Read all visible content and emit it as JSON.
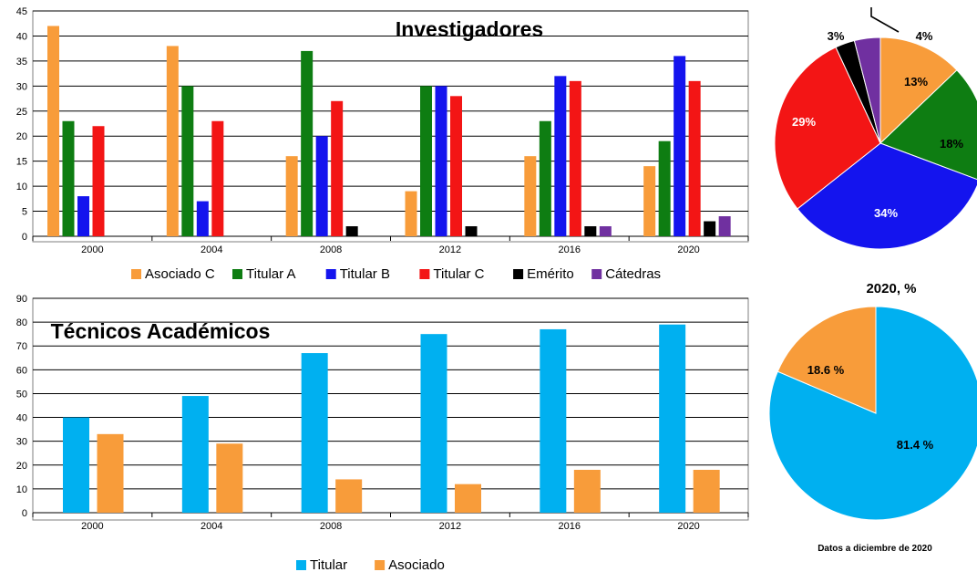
{
  "chart_data": [
    {
      "type": "bar",
      "title": "Investigadores",
      "categories": [
        "2000",
        "2004",
        "2008",
        "2012",
        "2016",
        "2020"
      ],
      "ylim": [
        0,
        45
      ],
      "yticks": [
        0,
        5,
        10,
        15,
        20,
        25,
        30,
        35,
        40,
        45
      ],
      "grid": true,
      "legend": "bottom",
      "series": [
        {
          "name": "Asociado C",
          "color": "#f89c3a",
          "values": [
            42,
            38,
            16,
            9,
            16,
            14
          ]
        },
        {
          "name": "Titular A",
          "color": "#0e7d12",
          "values": [
            23,
            30,
            37,
            30,
            23,
            19
          ]
        },
        {
          "name": "Titular B",
          "color": "#1414ee",
          "values": [
            8,
            7,
            20,
            30,
            32,
            36
          ]
        },
        {
          "name": "Titular C",
          "color": "#f31515",
          "values": [
            22,
            23,
            27,
            28,
            31,
            31
          ]
        },
        {
          "name": "Emérito",
          "color": "#000000",
          "values": [
            0,
            0,
            2,
            2,
            2,
            3
          ]
        },
        {
          "name": "Cátedras",
          "color": "#7030a0",
          "values": [
            0,
            0,
            0,
            0,
            2,
            4
          ]
        }
      ]
    },
    {
      "type": "pie",
      "slices": [
        {
          "name": "Asociado C",
          "label": "13%",
          "value": 13,
          "color": "#f89c3a"
        },
        {
          "name": "Titular A",
          "label": "18%",
          "value": 18,
          "color": "#0e7d12"
        },
        {
          "name": "Titular B",
          "label": "34%",
          "value": 34,
          "color": "#1414ee"
        },
        {
          "name": "Titular C",
          "label": "29%",
          "value": 29,
          "color": "#f31515"
        },
        {
          "name": "Emérito",
          "label": "3%",
          "value": 3,
          "color": "#000000"
        },
        {
          "name": "Cátedras",
          "label": "4%",
          "value": 4,
          "color": "#7030a0"
        }
      ]
    },
    {
      "type": "bar",
      "title": "Técnicos Académicos",
      "categories": [
        "2000",
        "2004",
        "2008",
        "2012",
        "2016",
        "2020"
      ],
      "ylim": [
        0,
        90
      ],
      "yticks": [
        0,
        10,
        20,
        30,
        40,
        50,
        60,
        70,
        80,
        90
      ],
      "grid": true,
      "legend": "bottom",
      "series": [
        {
          "name": "Titular",
          "color": "#00b0f0",
          "values": [
            40,
            49,
            67,
            75,
            77,
            79
          ]
        },
        {
          "name": "Asociado",
          "color": "#f89c3a",
          "values": [
            33,
            29,
            14,
            12,
            18,
            18
          ]
        }
      ]
    },
    {
      "type": "pie",
      "title": "2020, %",
      "note": "Datos a diciembre de 2020",
      "slices": [
        {
          "name": "Titular",
          "label": "81.4 %",
          "value": 81.4,
          "color": "#00b0f0"
        },
        {
          "name": "Asociado",
          "label": "18.6 %",
          "value": 18.6,
          "color": "#f89c3a"
        }
      ]
    }
  ]
}
